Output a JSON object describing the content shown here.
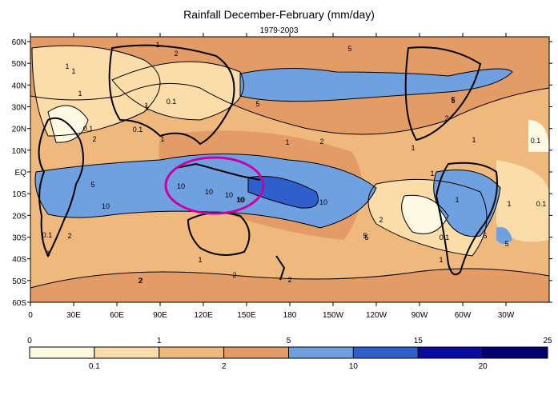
{
  "chart_data": {
    "type": "map",
    "title": "Rainfall December-February (mm/day)",
    "subtitle": "1979-2003",
    "lat_ticks": [
      "60N",
      "50N",
      "40N",
      "30N",
      "20N",
      "10N",
      "EQ",
      "10S",
      "20S",
      "30S",
      "40S",
      "50S",
      "60S"
    ],
    "lon_ticks": [
      "0",
      "30E",
      "60E",
      "90E",
      "120E",
      "150E",
      "180",
      "150W",
      "120W",
      "90W",
      "60W",
      "30W"
    ],
    "legend_levels": [
      0,
      0.1,
      1,
      2,
      5,
      10,
      15,
      20,
      25
    ],
    "legend_top_labels": [
      "0",
      "1",
      "5",
      "15",
      "25"
    ],
    "legend_bottom_labels": [
      "0.1",
      "2",
      "10",
      "20"
    ],
    "legend_colors": [
      "#fef9e2",
      "#fbddaa",
      "#efb97e",
      "#e49c67",
      "#6fa1e0",
      "#2e5fcc",
      "#0b0ba3",
      "#000073"
    ],
    "contour_labels": [
      "1",
      "0.1",
      "1",
      "1",
      "1",
      "0.1",
      "0.1",
      "1",
      "5",
      "1",
      "2",
      "5",
      "1",
      "5",
      "1",
      "0.1",
      "2",
      "5",
      "2",
      "10",
      "10",
      "10",
      "10",
      "10",
      "2",
      "0.1",
      "2",
      "1",
      "1",
      "2",
      "2",
      "1",
      "0.1",
      "5",
      "10",
      "5",
      "1",
      "1",
      "5",
      "2",
      "0.1",
      "1",
      "2",
      "1",
      "10",
      "1",
      "2",
      "5",
      "5"
    ],
    "highlight": "magenta-ellipse"
  }
}
